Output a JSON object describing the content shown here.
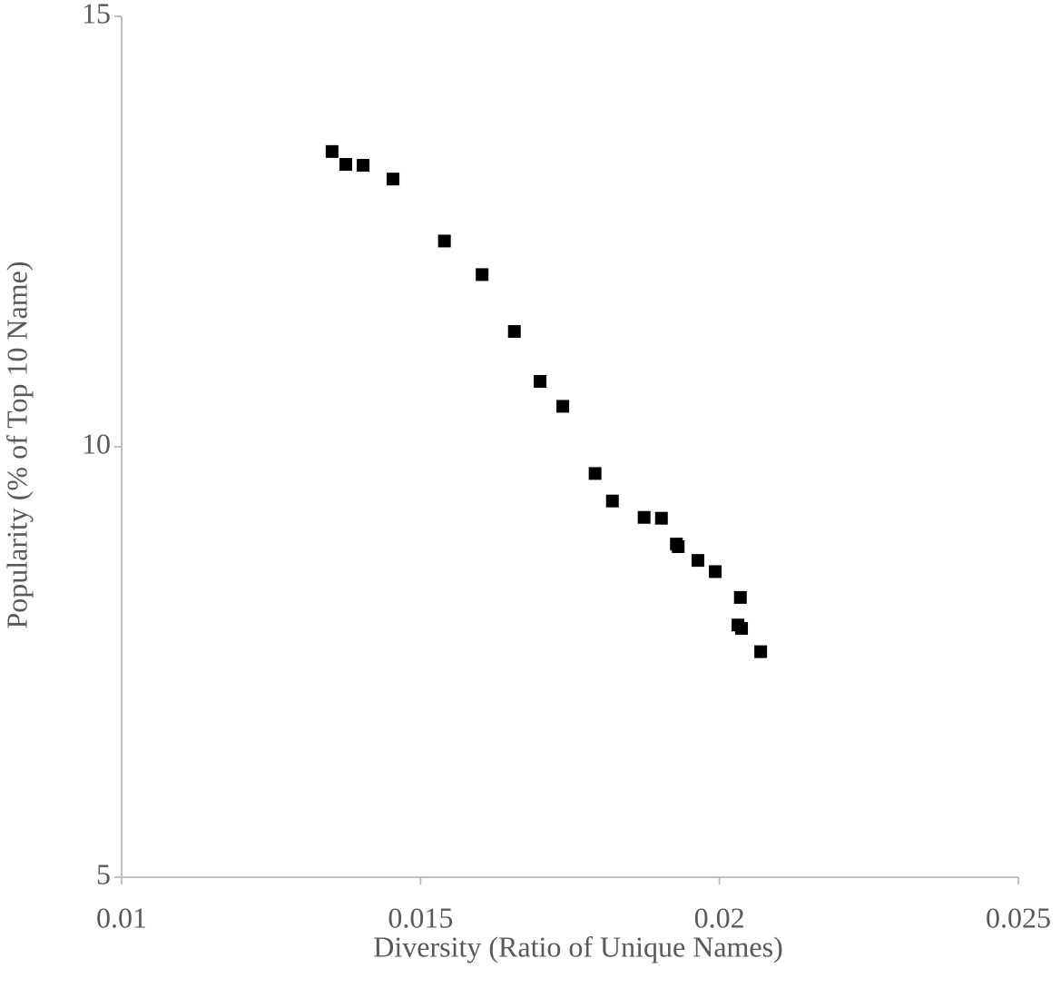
{
  "chart_data": {
    "type": "scatter",
    "x_label": "Diversity (Ratio of Unique Names)",
    "y_label": "Popularity (% of Top 10 Name)",
    "color": "#000000",
    "x": [
      0.01352,
      0.01375,
      0.01404,
      0.01454,
      0.0154,
      0.01603,
      0.01657,
      0.017,
      0.01738,
      0.01792,
      0.01821,
      0.01874,
      0.01903,
      0.01928,
      0.01931,
      0.01964,
      0.01993,
      0.02035,
      0.02031,
      0.02037,
      0.02069
    ],
    "values": [
      13.43,
      13.28,
      13.27,
      13.11,
      12.39,
      12.0,
      11.34,
      10.76,
      10.47,
      9.69,
      9.37,
      9.18,
      9.17,
      8.87,
      8.84,
      8.68,
      8.55,
      8.25,
      7.93,
      7.89,
      7.62
    ],
    "xlim": [
      0.01,
      0.025
    ],
    "xticks": [
      0.01,
      0.015,
      0.02,
      0.025
    ],
    "ylim": [
      5,
      15
    ],
    "yticks": [
      5,
      10,
      15
    ]
  }
}
